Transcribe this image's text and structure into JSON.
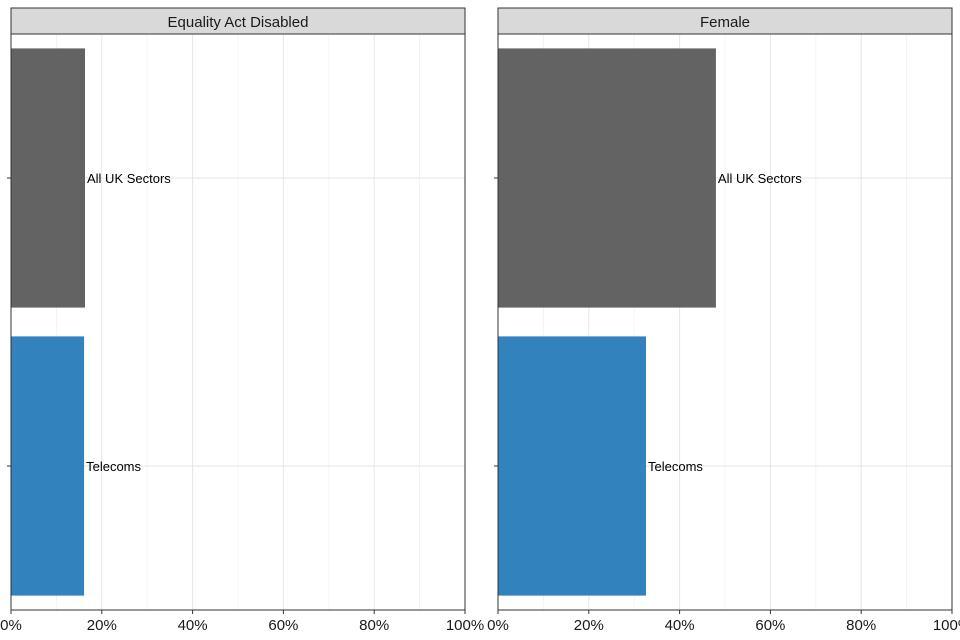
{
  "chart_data": {
    "type": "bar",
    "orientation": "horizontal",
    "categories": [
      "All UK Sectors",
      "Telecoms"
    ],
    "bar_colors": {
      "All UK Sectors": "#636363",
      "Telecoms": "#3182bd"
    },
    "xlim": [
      0,
      100
    ],
    "x_ticks": [
      0,
      20,
      40,
      60,
      80,
      100
    ],
    "x_tick_labels": [
      "0%",
      "20%",
      "40%",
      "60%",
      "80%",
      "100%"
    ],
    "grid": true,
    "legend": "none",
    "panels": [
      {
        "title": "Equality Act Disabled",
        "values": [
          16.3,
          16.1
        ]
      },
      {
        "title": "Female",
        "values": [
          48.0,
          32.6
        ]
      }
    ]
  }
}
